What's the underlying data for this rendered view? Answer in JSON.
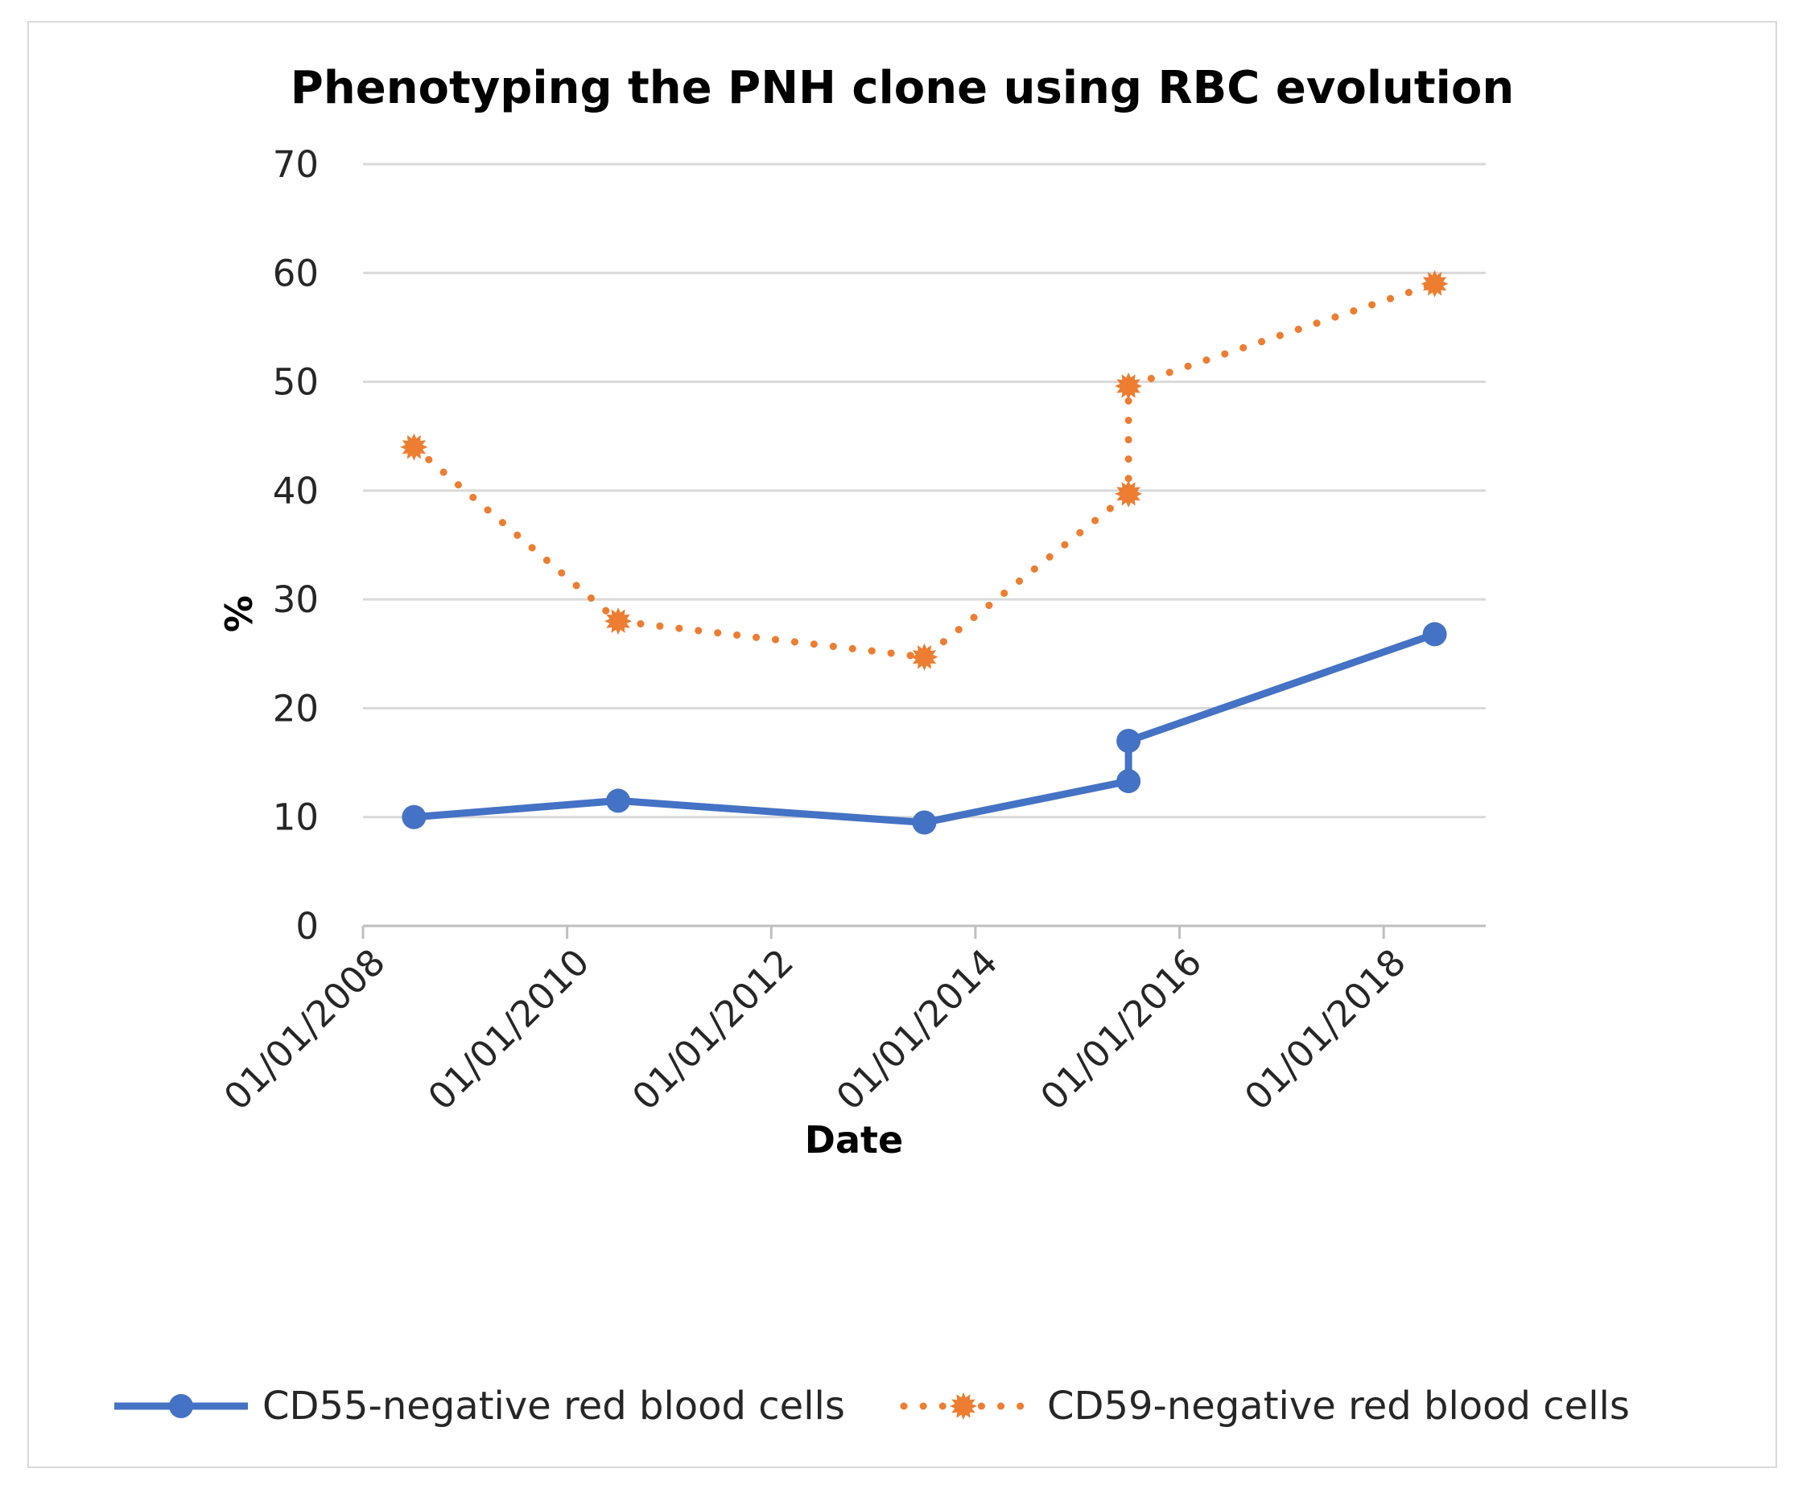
{
  "chart_data": {
    "type": "line",
    "title": "Phenotyping the PNH clone using RBC evolution",
    "xlabel": "Date",
    "ylabel": "%",
    "ylim": [
      0,
      70
    ],
    "yticks": [
      0,
      10,
      20,
      30,
      40,
      50,
      60,
      70
    ],
    "x_tick_labels": [
      "01/01/2008",
      "01/01/2010",
      "01/01/2012",
      "01/01/2014",
      "01/01/2016",
      "01/01/2018"
    ],
    "x_tick_years": [
      2008,
      2010,
      2012,
      2014,
      2016,
      2018
    ],
    "xlim_years": [
      2008,
      2019
    ],
    "grid": true,
    "legend_position": "bottom",
    "series": [
      {
        "name": "CD55-negative red blood cells",
        "color": "#4472c4",
        "line_style": "solid",
        "marker": "circle",
        "x_years": [
          2008.5,
          2010.5,
          2013.5,
          2015.5,
          2015.5,
          2018.5
        ],
        "values": [
          10,
          11.5,
          9.5,
          13.3,
          17,
          26.8
        ]
      },
      {
        "name": "CD59-negative red blood cells",
        "color": "#ed7d31",
        "line_style": "dotted",
        "marker": "star",
        "x_years": [
          2008.5,
          2010.5,
          2013.5,
          2015.5,
          2015.5,
          2018.5
        ],
        "values": [
          44,
          28,
          24.7,
          39.7,
          49.6,
          59
        ]
      }
    ]
  }
}
